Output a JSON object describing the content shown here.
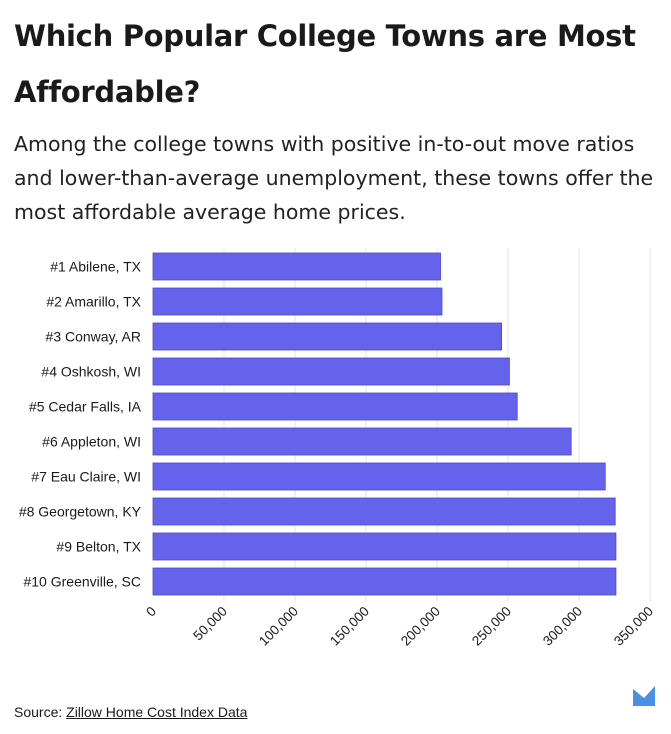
{
  "header": {
    "title": "Which Popular College Towns are Most Affordable?",
    "subtitle": "Among the college towns with positive in-to-out move ratios and lower-than-average unemployment, these towns offer the most affordable average home prices."
  },
  "footer": {
    "source_prefix": "Source: ",
    "source_link": "Zillow Home Cost Index Data"
  },
  "colors": {
    "bar": "#6563ec",
    "bar_stroke": "#4b49c8",
    "grid": "#e6e6e6",
    "logo": "#4a90e2"
  },
  "chart_data": {
    "type": "bar",
    "orientation": "horizontal",
    "categories": [
      "#1 Abilene, TX",
      "#2 Amarillo, TX",
      "#3 Conway, AR",
      "#4 Oshkosh, WI",
      "#5 Cedar Falls, IA",
      "#6 Appleton, WI",
      "#7 Eau Claire, WI",
      "#8 Georgetown, KY",
      "#9 Belton, TX",
      "#10 Greenville, SC"
    ],
    "values": [
      202500,
      203500,
      245500,
      251000,
      256500,
      294500,
      318500,
      325500,
      326000,
      326000
    ],
    "xlim": [
      0,
      350000
    ],
    "xticks": [
      0,
      50000,
      100000,
      150000,
      200000,
      250000,
      300000,
      350000
    ],
    "xtick_labels": [
      "0",
      "50,000",
      "100,000",
      "150,000",
      "200,000",
      "250,000",
      "300,000",
      "350,000"
    ],
    "grid": "vertical",
    "legend": "none"
  }
}
